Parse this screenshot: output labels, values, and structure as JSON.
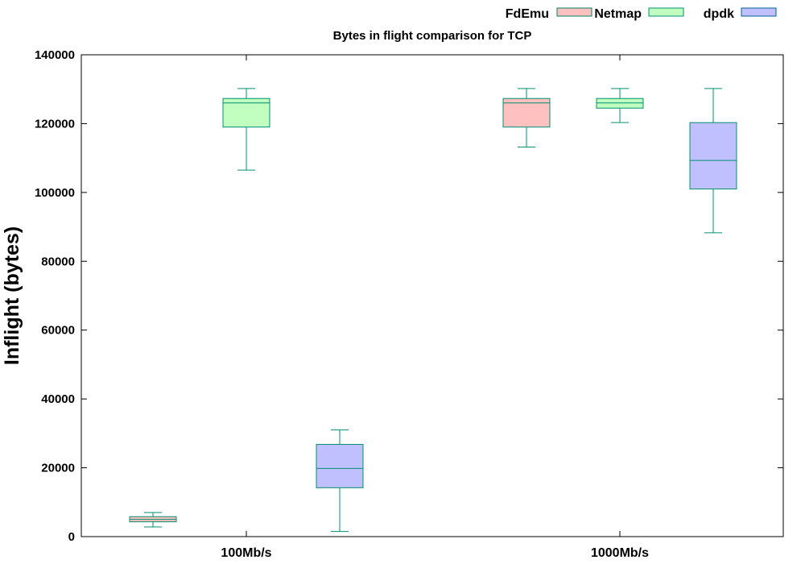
{
  "chart_data": {
    "type": "box",
    "title": "Bytes in flight comparison for TCP",
    "xlabel": "",
    "ylabel": "Inflight (bytes)",
    "ylim": [
      0,
      140000
    ],
    "yticks": [
      0,
      20000,
      40000,
      60000,
      80000,
      100000,
      120000,
      140000
    ],
    "ytick_labels": [
      "0",
      "20000",
      "40000",
      "60000",
      "80000",
      "100000",
      "120000",
      "140000"
    ],
    "categories": [
      "100Mb/s",
      "1000Mb/s"
    ],
    "legend_position": "top-right",
    "series": [
      {
        "name": "FdEmu",
        "color": "#ffc0c0",
        "boxes": [
          {
            "category": "100Mb/s",
            "min": 2800,
            "q1": 4300,
            "median": 5000,
            "q3": 5800,
            "max": 7000
          },
          {
            "category": "1000Mb/s",
            "min": 113200,
            "q1": 119000,
            "median": 126000,
            "q3": 127300,
            "max": 130200
          }
        ]
      },
      {
        "name": "Netmap",
        "color": "#c0ffc0",
        "boxes": [
          {
            "category": "100Mb/s",
            "min": 106500,
            "q1": 119000,
            "median": 126000,
            "q3": 127300,
            "max": 130200
          },
          {
            "category": "1000Mb/s",
            "min": 120300,
            "q1": 124500,
            "median": 126000,
            "q3": 127300,
            "max": 130200
          }
        ]
      },
      {
        "name": "dpdk",
        "color": "#c0c0ff",
        "boxes": [
          {
            "category": "100Mb/s",
            "min": 1500,
            "q1": 14200,
            "median": 19800,
            "q3": 26800,
            "max": 31000
          },
          {
            "category": "1000Mb/s",
            "min": 88300,
            "q1": 101000,
            "median": 109300,
            "q3": 120300,
            "max": 130200
          }
        ]
      }
    ]
  },
  "colors": {
    "box_stroke": "#009070",
    "legend_stroke_fdemu": "#008060",
    "legend_stroke_netmap": "#009070",
    "legend_stroke_dpdk": "#0060a0",
    "axis": "#000000"
  }
}
